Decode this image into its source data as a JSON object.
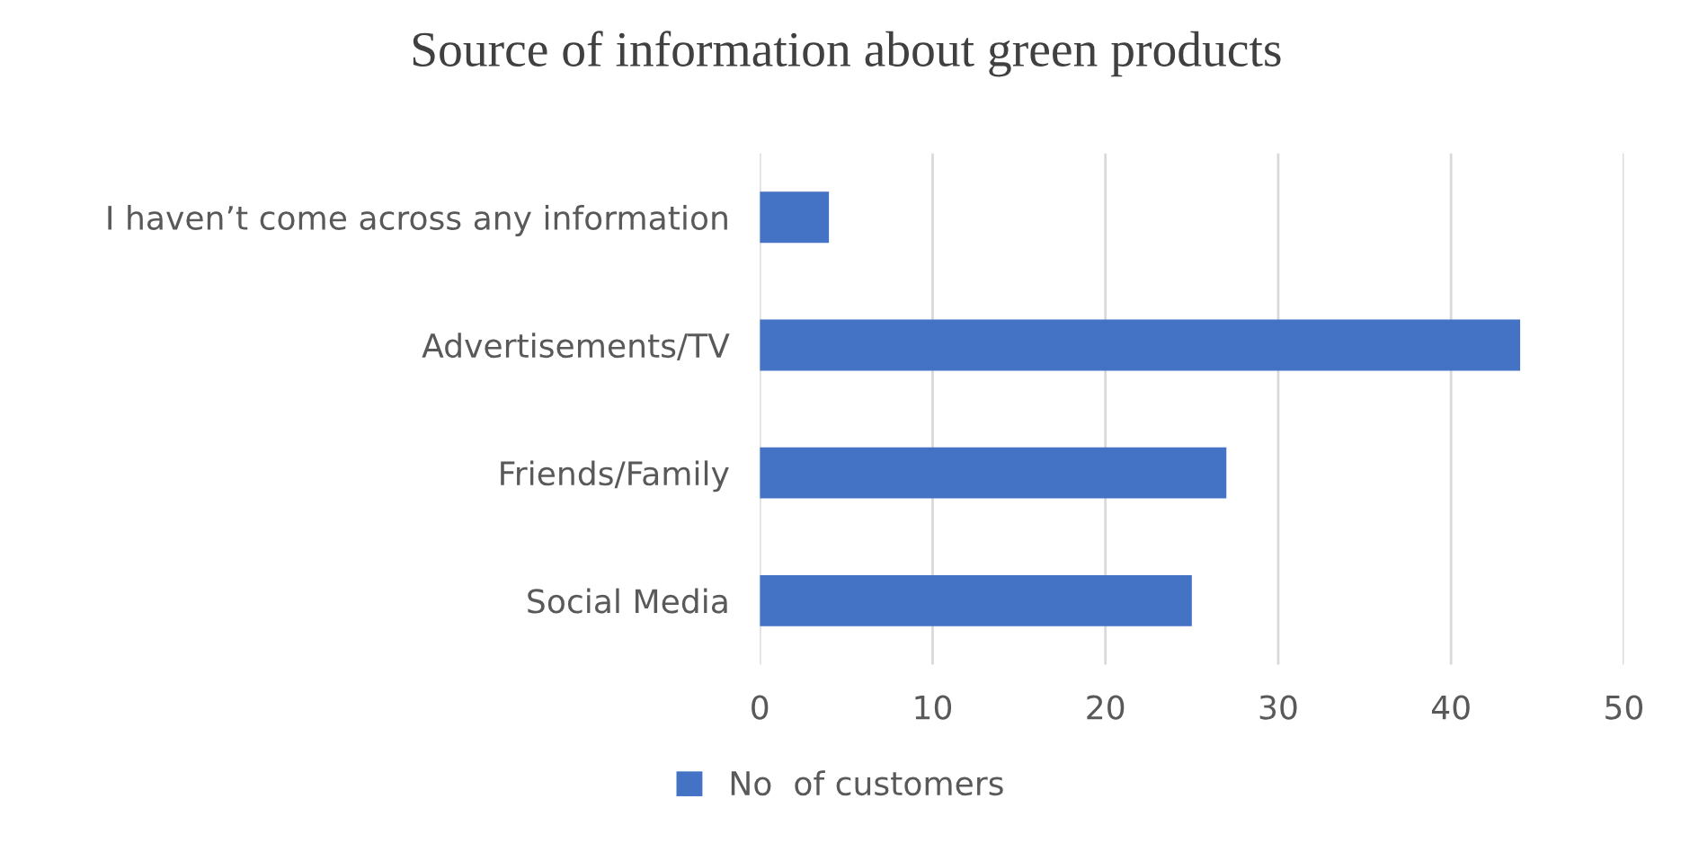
{
  "chart_data": {
    "type": "bar",
    "orientation": "horizontal",
    "title": "Source of information about green products",
    "categories": [
      "I haven’t come across any information",
      "Advertisements/TV",
      "Friends/Family",
      "Social Media"
    ],
    "series": [
      {
        "name": "No  of customers",
        "color": "#4472c4",
        "values": [
          4,
          44,
          27,
          25
        ]
      }
    ],
    "xlim": [
      0,
      50
    ],
    "xticks": [
      0,
      10,
      20,
      30,
      40,
      50
    ],
    "grid": "x",
    "legend": "bottom"
  }
}
